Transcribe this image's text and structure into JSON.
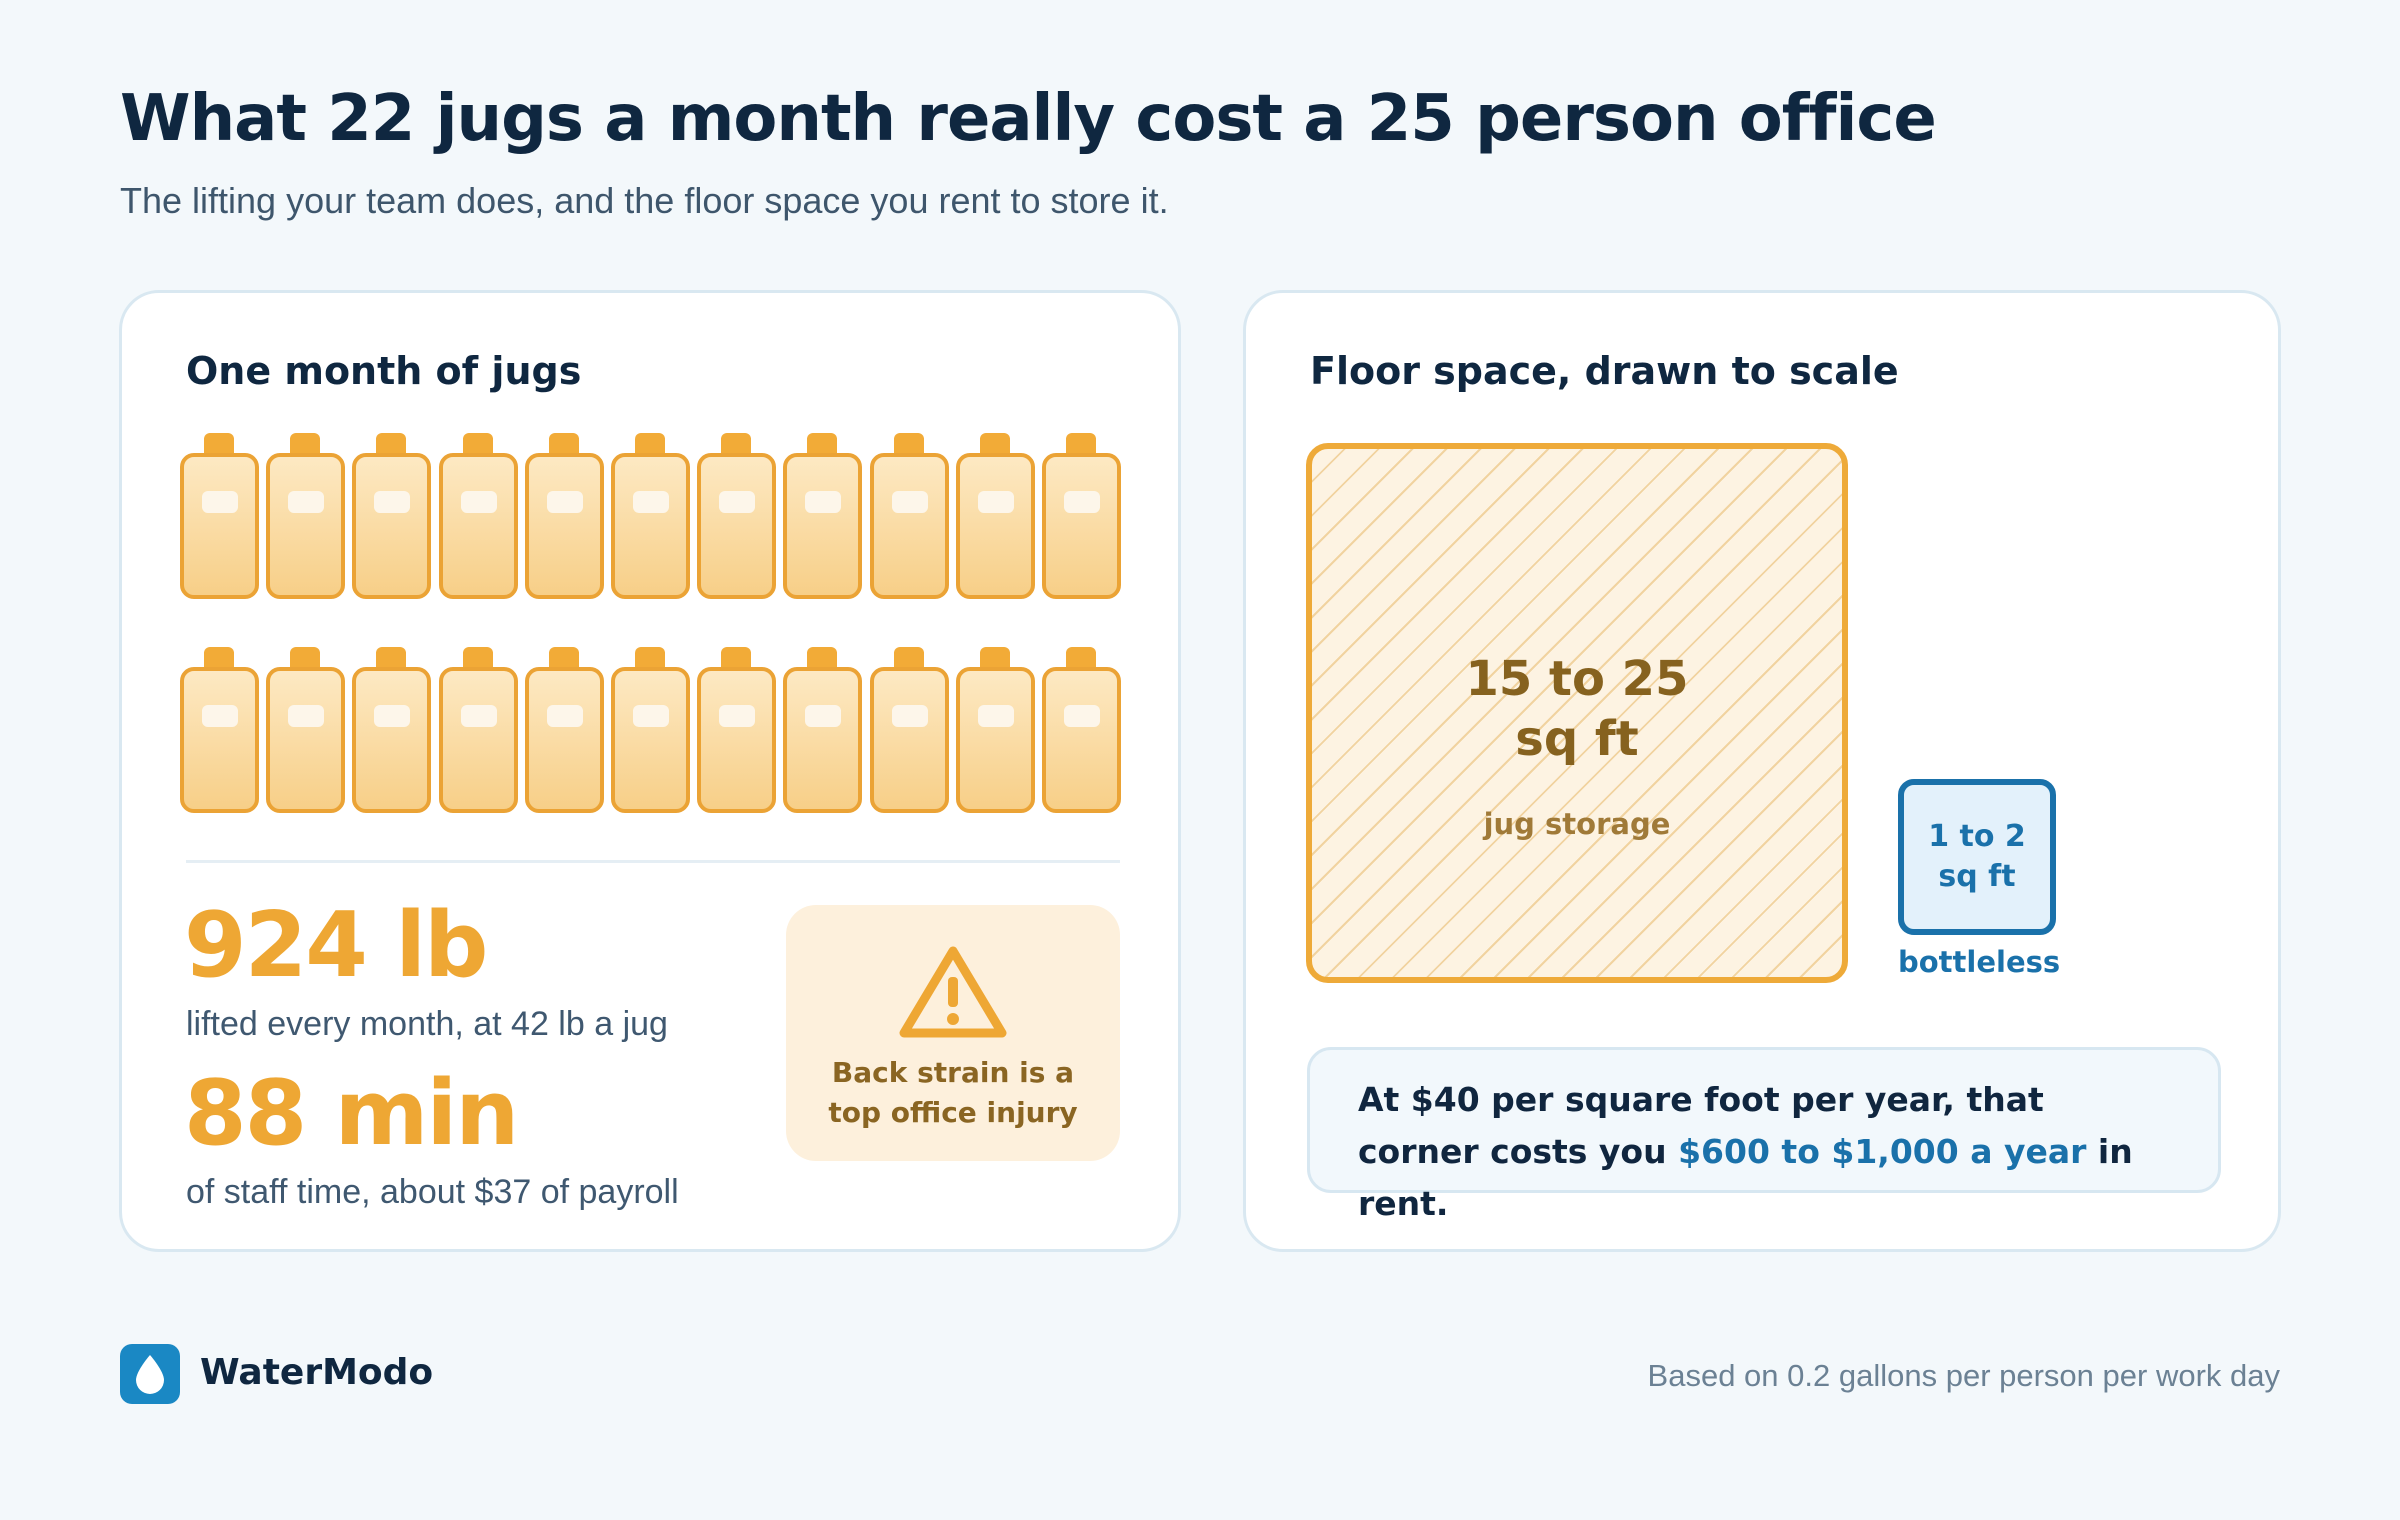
{
  "header": {
    "title": "What 22 jugs a month really cost a 25 person office",
    "subtitle": "The lifting your team does, and the floor space you rent to store it."
  },
  "jugs_card": {
    "title": "One month of jugs",
    "jug_count": 22,
    "jugs_per_row": 11,
    "weight_value": "924 lb",
    "weight_desc": "lifted every month, at 42 lb a jug",
    "time_value": "88 min",
    "time_desc": "of staff time, about $37 of payroll",
    "warning_text": "Back strain is a top office injury",
    "warning_icon": "warning-triangle-icon"
  },
  "floor_card": {
    "title": "Floor space, drawn to scale",
    "jug_area_value": "15 to 25 sq ft",
    "jug_area_label": "jug storage",
    "bottleless_area_value": "1 to 2 sq ft",
    "bottleless_label": "bottleless",
    "rent_text_prefix": "At $40 per square foot per year, that corner costs you ",
    "rent_highlight": "$600 to $1,000 a year",
    "rent_text_suffix": " in rent."
  },
  "footer": {
    "brand": "WaterModo",
    "logo_icon": "water-drop-icon",
    "footnote": "Based on 0.2 gallons per person per work day"
  },
  "colors": {
    "background": "#f3f8fb",
    "accent_orange": "#eea734",
    "accent_blue": "#1a71aa",
    "text_dark": "#0f2740"
  }
}
